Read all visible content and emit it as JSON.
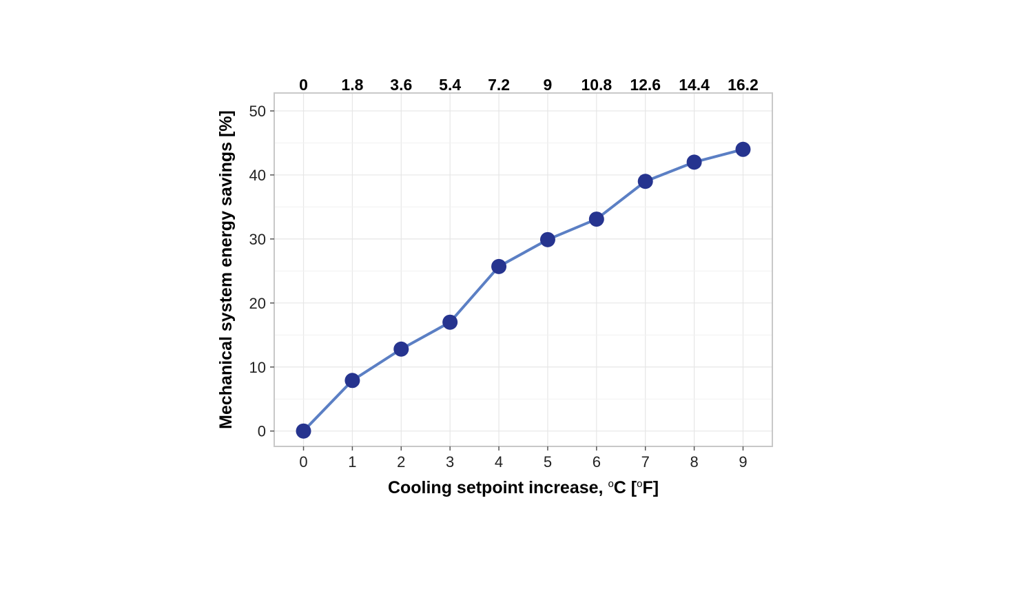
{
  "chart_data": {
    "type": "line",
    "x": [
      0,
      1,
      2,
      3,
      4,
      5,
      6,
      7,
      8,
      9
    ],
    "x_tick_labels": [
      "0",
      "1",
      "2",
      "3",
      "4",
      "5",
      "6",
      "7",
      "8",
      "9"
    ],
    "x_top_tick_labels": [
      "0",
      "1.8",
      "3.6",
      "5.4",
      "7.2",
      "9",
      "10.8",
      "12.6",
      "14.4",
      "16.2"
    ],
    "y_tick_labels": [
      "0",
      "10",
      "20",
      "30",
      "40",
      "50"
    ],
    "y_ticks": [
      0,
      10,
      20,
      30,
      40,
      50
    ],
    "series": [
      {
        "values": [
          0,
          7.9,
          12.8,
          17.0,
          25.7,
          29.9,
          33.1,
          39.0,
          42.0,
          44.0
        ]
      }
    ],
    "xlabel_main": "Cooling setpoint increase, ",
    "xlabel_sup1": "o",
    "xlabel_unit1": "C [",
    "xlabel_sup2": "o",
    "xlabel_unit2": "F]",
    "ylabel": "Mechanical system energy savings [%]",
    "xlim": [
      -0.6,
      9.6
    ],
    "ylim": [
      -2.4,
      52.8
    ],
    "grid": true,
    "colors": {
      "line": "#5b7fc4",
      "marker": "#26348f",
      "grid": "#e6e6e6",
      "border": "#c8c8c8"
    }
  }
}
